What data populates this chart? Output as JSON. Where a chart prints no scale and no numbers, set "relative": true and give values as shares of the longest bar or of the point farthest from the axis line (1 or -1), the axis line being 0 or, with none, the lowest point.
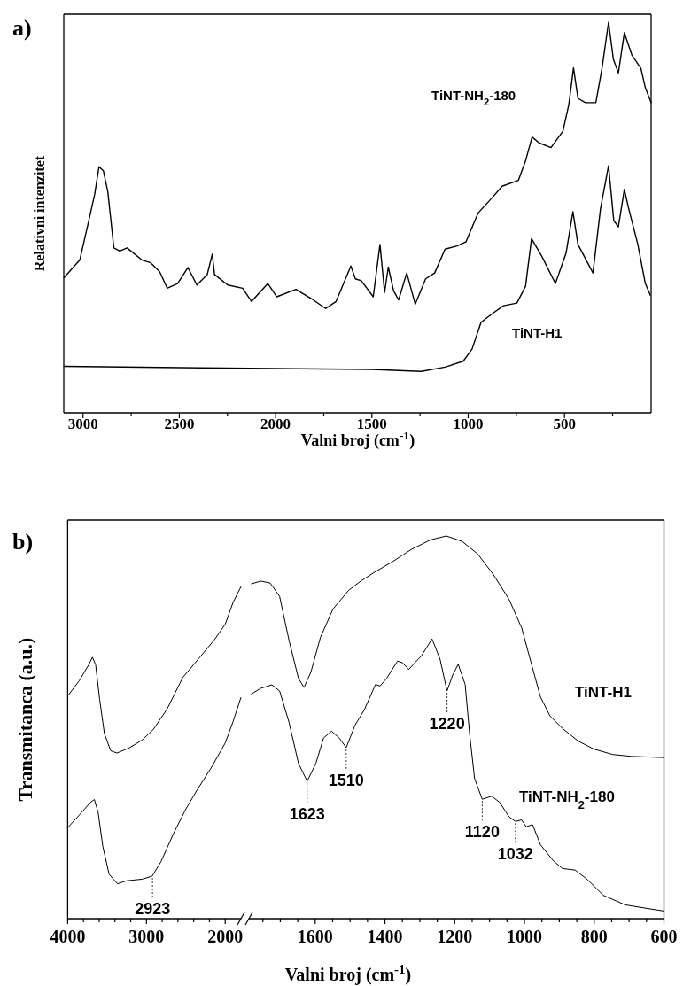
{
  "chart_data": [
    {
      "type": "line",
      "title": "a)",
      "xlabel": "Valni broj  (cm$^{-1}$)",
      "ylabel": "Relativni intenzitet",
      "relative": true,
      "xlim": [
        3100,
        50
      ],
      "xticks": [
        3000,
        {
          "value": 2750,
          "label": null
        },
        2500,
        {
          "value": 2250,
          "label": null
        },
        2000,
        {
          "value": 1750,
          "label": null
        },
        1500,
        {
          "value": 1250,
          "label": null
        },
        1000,
        {
          "value": 750,
          "label": null
        },
        500,
        {
          "value": 250,
          "label": null
        }
      ],
      "series": [
        {
          "name": "TiNT-H1",
          "color": "#000000",
          "x": [
            3099,
            2386,
            1501,
            1244,
            1120,
            1026,
            980,
            933,
            871,
            817,
            747,
            702,
            671,
            617,
            547,
            492,
            456,
            430,
            352,
            313,
            271,
            244,
            220,
            189,
            166,
            119,
            80,
            54
          ],
          "values": [
            0.119,
            0.115,
            0.111,
            0.106,
            0.117,
            0.132,
            0.163,
            0.232,
            0.255,
            0.274,
            0.281,
            0.324,
            0.446,
            0.4,
            0.331,
            0.408,
            0.515,
            0.431,
            0.358,
            0.522,
            0.633,
            0.492,
            0.476,
            0.572,
            0.522,
            0.431,
            0.331,
            0.301
          ]
        },
        {
          "name": "TiNT-NH$_{2}$-180",
          "color": "#000000",
          "x": [
            3099,
            3017,
            2971,
            2940,
            2917,
            2894,
            2871,
            2840,
            2809,
            2771,
            2694,
            2648,
            2602,
            2563,
            2509,
            2455,
            2409,
            2355,
            2329,
            2317,
            2248,
            2171,
            2125,
            2040,
            1994,
            1894,
            1817,
            1740,
            1686,
            1609,
            1586,
            1555,
            1493,
            1458,
            1434,
            1415,
            1387,
            1361,
            1319,
            1275,
            1221,
            1174,
            1120,
            1057,
            1011,
            949,
            871,
            824,
            739,
            702,
            668,
            632,
            570,
            508,
            477,
            453,
            430,
            391,
            337,
            305,
            271,
            246,
            220,
            189,
            150,
            103,
            80,
            50
          ],
          "values": [
            0.346,
            0.391,
            0.49,
            0.558,
            0.63,
            0.619,
            0.565,
            0.422,
            0.414,
            0.422,
            0.391,
            0.384,
            0.361,
            0.319,
            0.331,
            0.372,
            0.327,
            0.354,
            0.406,
            0.354,
            0.327,
            0.319,
            0.285,
            0.331,
            0.297,
            0.316,
            0.293,
            0.267,
            0.285,
            0.376,
            0.343,
            0.338,
            0.297,
            0.431,
            0.308,
            0.373,
            0.312,
            0.289,
            0.358,
            0.278,
            0.343,
            0.358,
            0.419,
            0.427,
            0.438,
            0.511,
            0.553,
            0.58,
            0.595,
            0.645,
            0.706,
            0.691,
            0.679,
            0.721,
            0.79,
            0.883,
            0.805,
            0.794,
            0.794,
            0.882,
            1.0,
            0.905,
            0.87,
            0.973,
            0.916,
            0.882,
            0.832,
            0.794
          ]
        }
      ]
    },
    {
      "type": "line",
      "title": "b)",
      "ylabel": "Transmitanca (a.u.)",
      "relative": true,
      "xlim": [
        4000,
        1800
      ],
      "xticks": [
        4000,
        {
          "value": 3800,
          "label": null
        },
        {
          "value": 3600,
          "label": null
        },
        {
          "value": 3400,
          "label": null
        },
        {
          "value": 3200,
          "label": null
        },
        3000,
        {
          "value": 2800,
          "label": null
        },
        {
          "value": 2600,
          "label": null
        },
        {
          "value": 2400,
          "label": null
        },
        {
          "value": 2200,
          "label": null
        },
        2000
      ],
      "annotations": [
        {
          "text": "2923",
          "x": 2923,
          "y": 0.128
        }
      ],
      "series": [
        {
          "color": "#000000",
          "x": [
            4000,
            3853,
            3733,
            3685,
            3645,
            3594,
            3534,
            3454,
            3375,
            3215,
            3056,
            2916,
            2737,
            2538,
            2339,
            2139,
            2000,
            1900,
            1801
          ],
          "values": [
            0.671,
            0.717,
            0.765,
            0.788,
            0.765,
            0.661,
            0.558,
            0.506,
            0.499,
            0.515,
            0.538,
            0.569,
            0.632,
            0.727,
            0.783,
            0.84,
            0.887,
            0.953,
            1.0
          ]
        },
        {
          "color": "#000000",
          "x": [
            4000,
            3853,
            3713,
            3661,
            3614,
            3554,
            3474,
            3367,
            3255,
            3056,
            2928,
            2817,
            2657,
            2498,
            2359,
            2179,
            2000,
            1900,
            1801
          ],
          "values": [
            0.274,
            0.312,
            0.35,
            0.359,
            0.321,
            0.218,
            0.134,
            0.105,
            0.114,
            0.119,
            0.128,
            0.171,
            0.256,
            0.331,
            0.387,
            0.454,
            0.529,
            0.594,
            0.666
          ]
        }
      ]
    },
    {
      "type": "line",
      "xlabel": "Valni broj (cm$^{-1}$)",
      "relative": true,
      "xlim": [
        1790,
        600
      ],
      "xticks": [
        {
          "value": 1750,
          "label": null
        },
        {
          "value": 1700,
          "label": null
        },
        {
          "value": 1650,
          "label": null
        },
        1600,
        {
          "value": 1550,
          "label": null
        },
        {
          "value": 1500,
          "label": null
        },
        {
          "value": 1450,
          "label": null
        },
        1400,
        {
          "value": 1350,
          "label": null
        },
        {
          "value": 1300,
          "label": null
        },
        {
          "value": 1250,
          "label": null
        },
        1200,
        {
          "value": 1150,
          "label": null
        },
        {
          "value": 1100,
          "label": null
        },
        {
          "value": 1050,
          "label": null
        },
        1000,
        {
          "value": 950,
          "label": null
        },
        {
          "value": 900,
          "label": null
        },
        {
          "value": 850,
          "label": null
        },
        800,
        {
          "value": 750,
          "label": null
        },
        {
          "value": 700,
          "label": null
        },
        {
          "value": 650,
          "label": null
        },
        600
      ],
      "annotations": [
        {
          "text": "1623",
          "x": 1623,
          "y": 0.359
        },
        {
          "text": "1510",
          "x": 1511,
          "y": 0.447
        },
        {
          "text": "1220",
          "x": 1222,
          "y": 0.595
        },
        {
          "text": "1120",
          "x": 1121,
          "y": 0.312
        },
        {
          "text": "1032",
          "x": 1026,
          "y": 0.254
        }
      ],
      "series": [
        {
          "name": "TiNT-H1",
          "color": "#000000",
          "x": [
            1783,
            1756,
            1729,
            1702,
            1675,
            1648,
            1632,
            1612,
            1585,
            1549,
            1504,
            1468,
            1432,
            1378,
            1324,
            1269,
            1224,
            1179,
            1134,
            1089,
            1044,
            1008,
            981,
            954,
            927,
            891,
            846,
            801,
            747,
            693,
            601
          ],
          "values": [
            0.875,
            0.882,
            0.877,
            0.842,
            0.727,
            0.628,
            0.604,
            0.645,
            0.735,
            0.809,
            0.858,
            0.883,
            0.904,
            0.933,
            0.965,
            0.99,
            1.0,
            0.986,
            0.953,
            0.899,
            0.834,
            0.76,
            0.669,
            0.579,
            0.53,
            0.497,
            0.464,
            0.443,
            0.429,
            0.424,
            0.421
          ]
        },
        {
          "name": "TiNT-NH$_{2}$-180",
          "color": "#000000",
          "x": [
            1783,
            1756,
            1724,
            1702,
            1675,
            1648,
            1623,
            1598,
            1576,
            1553,
            1531,
            1511,
            1486,
            1459,
            1427,
            1414,
            1395,
            1364,
            1350,
            1332,
            1314,
            1296,
            1265,
            1242,
            1222,
            1206,
            1190,
            1170,
            1157,
            1143,
            1121,
            1094,
            1071,
            1044,
            1026,
            1008,
            995,
            977,
            954,
            918,
            891,
            855,
            819,
            774,
            711,
            657,
            601
          ],
          "values": [
            0.587,
            0.602,
            0.611,
            0.595,
            0.513,
            0.406,
            0.359,
            0.406,
            0.472,
            0.49,
            0.472,
            0.447,
            0.505,
            0.546,
            0.612,
            0.608,
            0.628,
            0.673,
            0.669,
            0.651,
            0.669,
            0.686,
            0.731,
            0.678,
            0.595,
            0.636,
            0.665,
            0.612,
            0.481,
            0.366,
            0.312,
            0.32,
            0.304,
            0.266,
            0.254,
            0.258,
            0.24,
            0.246,
            0.193,
            0.152,
            0.131,
            0.127,
            0.102,
            0.061,
            0.036,
            0.028,
            0.02
          ]
        }
      ]
    }
  ]
}
